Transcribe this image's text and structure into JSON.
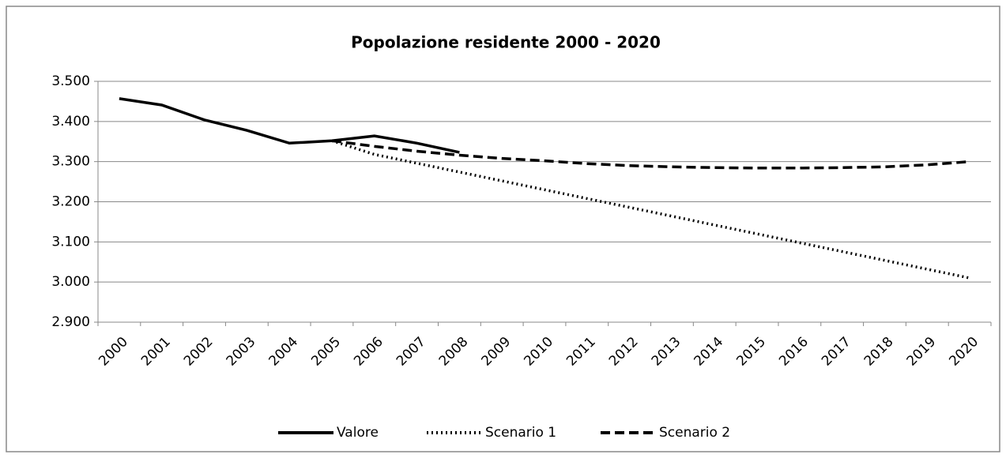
{
  "chart_data": {
    "type": "line",
    "title": "Popolazione residente 2000 - 2020",
    "categories": [
      "2000",
      "2001",
      "2002",
      "2003",
      "2004",
      "2005",
      "2006",
      "2007",
      "2008",
      "2009",
      "2010",
      "2011",
      "2012",
      "2013",
      "2014",
      "2015",
      "2016",
      "2017",
      "2018",
      "2019",
      "2020"
    ],
    "series": [
      {
        "name": "Valore",
        "color": "#000000",
        "dash": "solid",
        "values": [
          3457,
          3441,
          3404,
          3378,
          3346,
          3352,
          3364,
          3346,
          3323,
          null,
          null,
          null,
          null,
          null,
          null,
          null,
          null,
          null,
          null,
          null,
          null
        ]
      },
      {
        "name": "Scenario 1",
        "color": "#000000",
        "dash": "dotted",
        "values": [
          null,
          null,
          null,
          null,
          null,
          3352,
          3318,
          3296,
          3274,
          3252,
          3230,
          3208,
          3186,
          3164,
          3142,
          3120,
          3098,
          3076,
          3054,
          3032,
          3010
        ]
      },
      {
        "name": "Scenario 2",
        "color": "#000000",
        "dash": "dashed",
        "values": [
          null,
          null,
          null,
          null,
          null,
          3352,
          3338,
          3326,
          3316,
          3308,
          3302,
          3295,
          3290,
          3287,
          3285,
          3284,
          3284,
          3285,
          3287,
          3292,
          3300
        ]
      }
    ],
    "ylim": [
      2900,
      3500
    ],
    "yticks": [
      {
        "value": 2900,
        "label": "2.900"
      },
      {
        "value": 3000,
        "label": "3.000"
      },
      {
        "value": 3100,
        "label": "3.100"
      },
      {
        "value": 3200,
        "label": "3.200"
      },
      {
        "value": 3300,
        "label": "3.300"
      },
      {
        "value": 3400,
        "label": "3.400"
      },
      {
        "value": 3500,
        "label": "3.500"
      }
    ],
    "grid": true,
    "legend": "bottom"
  }
}
